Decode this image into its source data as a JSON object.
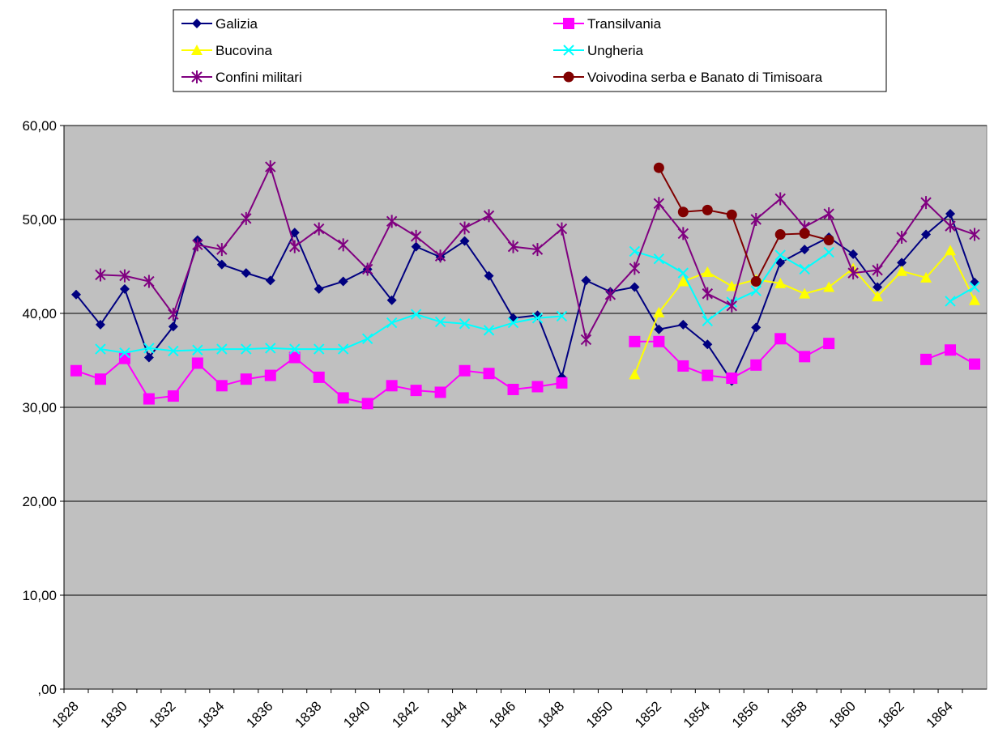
{
  "chart_data": {
    "type": "line",
    "categories": [
      "1828",
      null,
      "1830",
      null,
      "1832",
      null,
      "1834",
      null,
      "1836",
      null,
      "1838",
      null,
      "1840",
      null,
      "1842",
      null,
      "1844",
      null,
      "1846",
      null,
      "1848",
      null,
      "1850",
      null,
      "1852",
      null,
      "1854",
      null,
      "1856",
      null,
      "1858",
      null,
      "1860",
      null,
      "1862",
      null,
      "1864",
      null
    ],
    "ylim": [
      0,
      60
    ],
    "yticks": [
      {
        "value": 0,
        "label": ",00"
      },
      {
        "value": 10,
        "label": "10,00"
      },
      {
        "value": 20,
        "label": "20,00"
      },
      {
        "value": 30,
        "label": "30,00"
      },
      {
        "value": 40,
        "label": "40,00"
      },
      {
        "value": 50,
        "label": "50,00"
      },
      {
        "value": 60,
        "label": "60,00"
      }
    ],
    "grid": true,
    "background": "#c0c0c0",
    "legend": "top",
    "series": [
      {
        "name": "Galizia",
        "color": "#000080",
        "marker": "diamond",
        "values": [
          42.0,
          38.8,
          42.6,
          35.3,
          38.6,
          47.8,
          45.2,
          44.3,
          43.5,
          48.6,
          42.6,
          43.4,
          44.7,
          41.4,
          47.1,
          46.0,
          47.7,
          44.0,
          39.5,
          39.8,
          33.2,
          43.5,
          42.3,
          42.8,
          38.3,
          38.8,
          36.7,
          32.8,
          38.5,
          45.4,
          46.8,
          48.1,
          46.3,
          42.8,
          45.4,
          48.4,
          50.6,
          43.3
        ]
      },
      {
        "name": "Transilvania",
        "color": "#ff00ff",
        "marker": "square",
        "values": [
          33.9,
          33.0,
          35.2,
          30.9,
          31.2,
          34.7,
          32.3,
          33.0,
          33.4,
          35.3,
          33.2,
          31.0,
          30.4,
          32.3,
          31.8,
          31.6,
          33.9,
          33.6,
          31.9,
          32.2,
          32.6,
          null,
          null,
          37.0,
          37.0,
          34.4,
          33.4,
          33.1,
          34.5,
          37.3,
          35.4,
          36.8,
          null,
          null,
          null,
          35.1,
          36.1,
          34.6
        ]
      },
      {
        "name": "Bucovina",
        "color": "#ffff00",
        "marker": "triangle",
        "values": [
          null,
          null,
          null,
          null,
          null,
          null,
          null,
          null,
          null,
          null,
          null,
          null,
          null,
          null,
          null,
          null,
          null,
          null,
          null,
          null,
          null,
          null,
          null,
          33.5,
          40.1,
          43.4,
          44.4,
          42.9,
          43.6,
          43.2,
          42.1,
          42.8,
          44.8,
          41.8,
          44.5,
          43.8,
          46.7,
          41.4
        ]
      },
      {
        "name": "Ungheria",
        "color": "#00ffff",
        "marker": "x",
        "values": [
          null,
          36.2,
          35.8,
          36.3,
          36.0,
          36.1,
          36.2,
          36.2,
          36.3,
          36.2,
          36.2,
          36.2,
          37.3,
          39.0,
          39.9,
          39.1,
          38.9,
          38.2,
          39.0,
          39.5,
          39.7,
          null,
          null,
          46.6,
          45.8,
          44.3,
          39.2,
          41.2,
          42.4,
          46.2,
          44.7,
          46.5,
          null,
          null,
          null,
          null,
          41.3,
          42.8
        ]
      },
      {
        "name": "Confini militari",
        "color": "#800080",
        "marker": "star",
        "values": [
          null,
          44.1,
          44.0,
          43.4,
          39.9,
          47.3,
          46.8,
          50.1,
          55.6,
          47.1,
          49.0,
          47.3,
          44.7,
          49.8,
          48.2,
          46.1,
          49.1,
          50.4,
          47.1,
          46.8,
          49.0,
          37.2,
          42.0,
          44.8,
          51.7,
          48.5,
          42.1,
          40.8,
          50.0,
          52.2,
          49.2,
          50.6,
          44.3,
          44.6,
          48.1,
          51.8,
          49.3,
          48.4
        ]
      },
      {
        "name": "Voivodina serba e Banato di Timisoara",
        "color": "#800000",
        "marker": "circle",
        "values": [
          null,
          null,
          null,
          null,
          null,
          null,
          null,
          null,
          null,
          null,
          null,
          null,
          null,
          null,
          null,
          null,
          null,
          null,
          null,
          null,
          null,
          null,
          null,
          null,
          55.5,
          50.8,
          51.0,
          50.5,
          43.4,
          48.4,
          48.5,
          47.8,
          null,
          null,
          null,
          null,
          null,
          null
        ]
      }
    ]
  }
}
